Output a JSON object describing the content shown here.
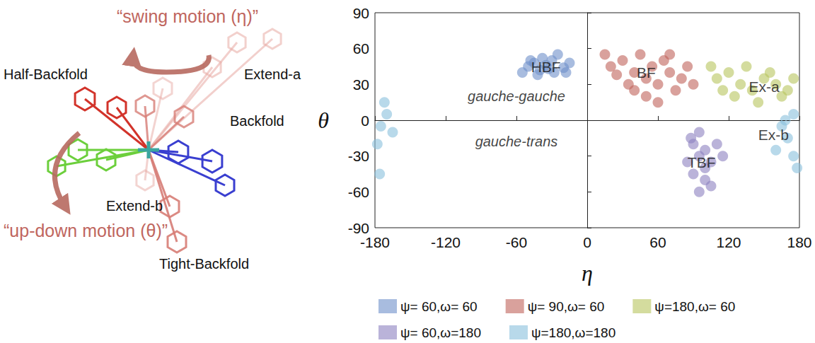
{
  "diagram": {
    "motion_labels": [
      "“swing motion (η)”",
      "“up-down motion (θ)”"
    ],
    "conformer_labels": [
      "Half-Backfold",
      "Extend-a",
      "Backfold",
      "Extend-b",
      "Tight-Backfold"
    ]
  },
  "chart_data": {
    "type": "scatter",
    "xlabel": "η",
    "ylabel": "θ",
    "xlim": [
      -180,
      180
    ],
    "ylim": [
      -90,
      90
    ],
    "xticks": [
      -180,
      -120,
      -60,
      0,
      60,
      120,
      180
    ],
    "yticks": [
      -90,
      -60,
      -30,
      0,
      30,
      60,
      90
    ],
    "grid": false,
    "legend": "bottom",
    "marker": "circle",
    "reference_line": {
      "y": 0,
      "line_style": "dashed"
    },
    "cluster_labels": [
      {
        "text": "HBF",
        "x": -35,
        "y": 45
      },
      {
        "text": "BF",
        "x": 50,
        "y": 40
      },
      {
        "text": "Ex-a",
        "x": 150,
        "y": 28
      },
      {
        "text": "TBF",
        "x": 97,
        "y": -35
      },
      {
        "text": "Ex-b",
        "x": 158,
        "y": -12
      }
    ],
    "region_labels": [
      {
        "text": "gauche-gauche",
        "x": -60,
        "y": 20
      },
      {
        "text": "gauche-trans",
        "x": -60,
        "y": -18
      }
    ],
    "series": [
      {
        "name": "ψ= 60,ω= 60",
        "color": "#6e8fc9",
        "points": [
          [
            -50,
            45
          ],
          [
            -45,
            48
          ],
          [
            -40,
            42
          ],
          [
            -35,
            46
          ],
          [
            -30,
            50
          ],
          [
            -28,
            40
          ],
          [
            -20,
            44
          ],
          [
            -38,
            52
          ],
          [
            -55,
            40
          ],
          [
            -42,
            38
          ],
          [
            -25,
            55
          ],
          [
            -15,
            48
          ],
          [
            -48,
            50
          ],
          [
            -33,
            43
          ],
          [
            -18,
            40
          ]
        ]
      },
      {
        "name": "ψ= 90,ω= 60",
        "color": "#c0635a",
        "points": [
          [
            20,
            45
          ],
          [
            30,
            50
          ],
          [
            40,
            40
          ],
          [
            50,
            35
          ],
          [
            55,
            45
          ],
          [
            60,
            30
          ],
          [
            70,
            40
          ],
          [
            80,
            35
          ],
          [
            45,
            55
          ],
          [
            35,
            30
          ],
          [
            65,
            50
          ],
          [
            75,
            25
          ],
          [
            85,
            45
          ],
          [
            25,
            38
          ],
          [
            50,
            20
          ],
          [
            90,
            30
          ],
          [
            60,
            15
          ],
          [
            40,
            25
          ],
          [
            15,
            55
          ],
          [
            70,
            55
          ]
        ]
      },
      {
        "name": "ψ=180,ω= 60",
        "color": "#b8c45e",
        "points": [
          [
            110,
            35
          ],
          [
            120,
            40
          ],
          [
            130,
            30
          ],
          [
            140,
            25
          ],
          [
            150,
            35
          ],
          [
            160,
            30
          ],
          [
            170,
            25
          ],
          [
            135,
            45
          ],
          [
            125,
            20
          ],
          [
            145,
            15
          ],
          [
            155,
            40
          ],
          [
            165,
            20
          ],
          [
            115,
            25
          ],
          [
            175,
            35
          ],
          [
            105,
            45
          ]
        ]
      },
      {
        "name": "ψ= 60,ω=180",
        "color": "#8c80c0",
        "points": [
          [
            90,
            -20
          ],
          [
            95,
            -30
          ],
          [
            100,
            -25
          ],
          [
            105,
            -35
          ],
          [
            90,
            -45
          ],
          [
            100,
            -50
          ],
          [
            95,
            -10
          ],
          [
            110,
            -20
          ],
          [
            85,
            -35
          ],
          [
            105,
            -55
          ],
          [
            95,
            -60
          ],
          [
            115,
            -30
          ],
          [
            88,
            -15
          ],
          [
            100,
            -40
          ]
        ]
      },
      {
        "name": "ψ=180,ω=180",
        "color": "#88c0dc",
        "points": [
          [
            165,
            -5
          ],
          [
            170,
            -15
          ],
          [
            175,
            5
          ],
          [
            160,
            -25
          ],
          [
            175,
            -30
          ],
          [
            168,
            0
          ],
          [
            -175,
            -5
          ],
          [
            -170,
            5
          ],
          [
            -178,
            -20
          ],
          [
            -165,
            -10
          ],
          [
            -172,
            15
          ],
          [
            178,
            -40
          ],
          [
            -176,
            -45
          ]
        ]
      }
    ]
  }
}
